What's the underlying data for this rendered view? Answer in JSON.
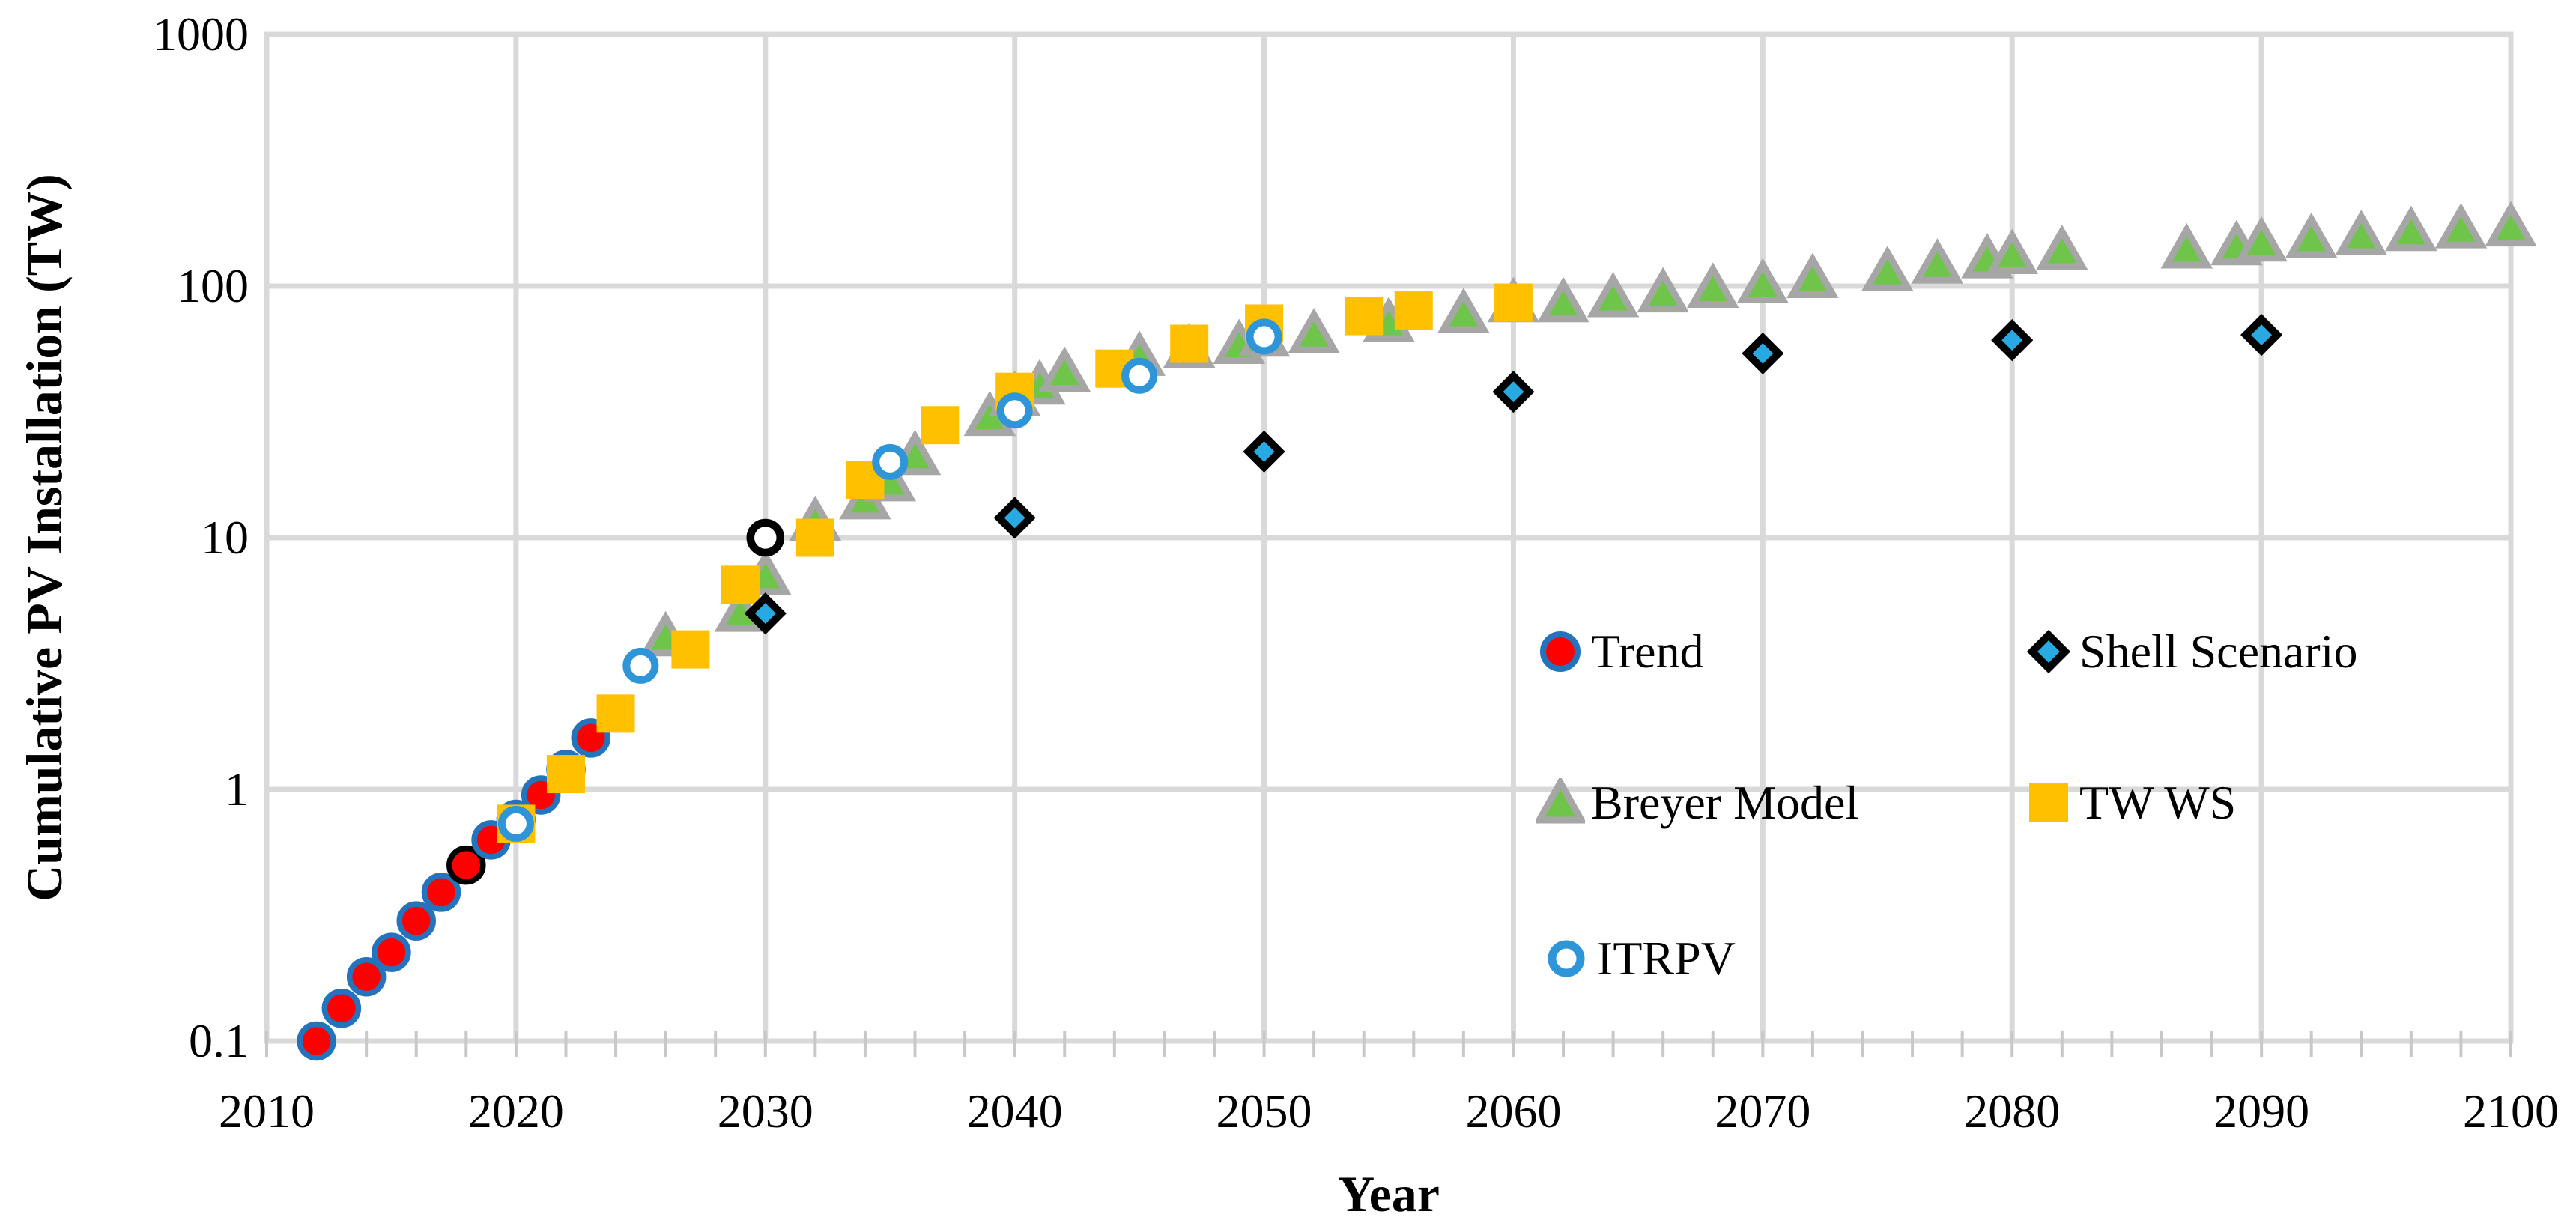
{
  "axes": {
    "x": {
      "label": "Year",
      "tick_labels": [
        "2010",
        "2020",
        "2030",
        "2040",
        "2050",
        "2060",
        "2070",
        "2080",
        "2090",
        "2100"
      ],
      "minor_tick_step_years": 2
    },
    "y": {
      "label": "Cumulative PV Installation (TW)",
      "tick_labels": [
        "1000",
        "100",
        "10",
        "1",
        "0.1"
      ],
      "scale": "log"
    }
  },
  "legend": {
    "items": [
      {
        "label": "Trend",
        "marker": "trend"
      },
      {
        "label": "Shell Scenario",
        "marker": "shell"
      },
      {
        "label": "Breyer Model",
        "marker": "breyer"
      },
      {
        "label": "TW WS",
        "marker": "twws"
      },
      {
        "label": "ITRPV",
        "marker": "itrpv"
      }
    ]
  },
  "colors": {
    "trend_fill": "#FF0000",
    "trend_edge": "#2473BD",
    "trend_highlight_edge": "#000000",
    "itrpv_ring": "#2E96D8",
    "shell_fill": "#27AAE1",
    "shell_edge": "#000000",
    "square_fill": "#FFC000",
    "triangle_fill": "#6EC549",
    "triangle_edge": "#A6A6A6",
    "grid": "#D9D9D9",
    "tick": "#C8C8C8",
    "annotation": "#000000",
    "background": "#FFFFFF"
  },
  "chart_data": {
    "type": "scatter",
    "title": "",
    "xlabel": "Year",
    "ylabel": "Cumulative PV Installation (TW)",
    "x_range": [
      2010,
      2100
    ],
    "y_scale": "log",
    "y_range": [
      0.1,
      1000
    ],
    "grid": true,
    "legend_position": "inside-right",
    "series": [
      {
        "name": "Trend",
        "marker": "circle",
        "points": [
          [
            2012,
            0.1
          ],
          [
            2013,
            0.135
          ],
          [
            2014,
            0.18
          ],
          [
            2015,
            0.225
          ],
          [
            2016,
            0.3
          ],
          [
            2017,
            0.39
          ],
          [
            2018,
            0.5
          ],
          [
            2019,
            0.63
          ],
          [
            2020,
            0.76
          ],
          [
            2021,
            0.95
          ],
          [
            2022,
            1.2
          ],
          [
            2023,
            1.6
          ]
        ],
        "black_edge_year": 2018
      },
      {
        "name": "Breyer Model",
        "marker": "triangle",
        "points": [
          [
            2026,
            4.0
          ],
          [
            2029,
            5.0
          ],
          [
            2030,
            7.0
          ],
          [
            2032,
            11.5
          ],
          [
            2034,
            14
          ],
          [
            2035,
            16.5
          ],
          [
            2036,
            21
          ],
          [
            2039,
            30
          ],
          [
            2040,
            36
          ],
          [
            2041,
            40
          ],
          [
            2042,
            45
          ],
          [
            2045,
            52
          ],
          [
            2047,
            56
          ],
          [
            2049,
            58
          ],
          [
            2050,
            62
          ],
          [
            2052,
            64
          ],
          [
            2055,
            71
          ],
          [
            2058,
            77
          ],
          [
            2060,
            85
          ],
          [
            2062,
            85
          ],
          [
            2064,
            89
          ],
          [
            2066,
            93
          ],
          [
            2068,
            97
          ],
          [
            2070,
            101
          ],
          [
            2072,
            106
          ],
          [
            2075,
            113
          ],
          [
            2077,
            121
          ],
          [
            2079,
            127
          ],
          [
            2080,
            132
          ],
          [
            2082,
            137
          ],
          [
            2087,
            139
          ],
          [
            2089,
            143
          ],
          [
            2090,
            148
          ],
          [
            2092,
            153
          ],
          [
            2094,
            157
          ],
          [
            2096,
            163
          ],
          [
            2098,
            167
          ],
          [
            2100,
            170
          ]
        ]
      },
      {
        "name": "TW WS",
        "marker": "square",
        "points": [
          [
            2020,
            0.73
          ],
          [
            2022,
            1.15
          ],
          [
            2024,
            2.0
          ],
          [
            2027,
            3.6
          ],
          [
            2029,
            6.5
          ],
          [
            2032,
            10.0
          ],
          [
            2034,
            17
          ],
          [
            2037,
            28
          ],
          [
            2040,
            38
          ],
          [
            2044,
            47
          ],
          [
            2047,
            59
          ],
          [
            2050,
            71
          ],
          [
            2054,
            76
          ],
          [
            2056,
            80
          ],
          [
            2060,
            86
          ]
        ]
      },
      {
        "name": "Shell Scenario",
        "marker": "diamond",
        "points": [
          [
            2030,
            5.0
          ],
          [
            2040,
            12
          ],
          [
            2050,
            22
          ],
          [
            2060,
            38
          ],
          [
            2070,
            54
          ],
          [
            2080,
            61
          ],
          [
            2090,
            64
          ]
        ]
      },
      {
        "name": "ITRPV",
        "marker": "open-circle",
        "points": [
          [
            2020,
            0.73
          ],
          [
            2025,
            3.1
          ],
          [
            2035,
            20
          ],
          [
            2040,
            32
          ],
          [
            2045,
            44
          ],
          [
            2050,
            63
          ]
        ]
      }
    ],
    "annotations": [
      {
        "type": "open-circle",
        "color": "#000000",
        "x": 2030,
        "y": 10
      }
    ]
  }
}
